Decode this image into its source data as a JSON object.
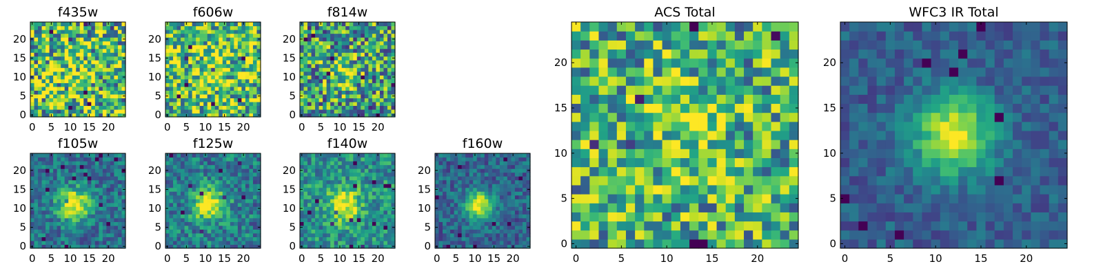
{
  "colormap": "viridis",
  "chart_data": [
    {
      "type": "heatmap",
      "title": "f435w",
      "grid": [
        25,
        25
      ],
      "pattern": "noise",
      "seed": 11,
      "peak": [
        11,
        11
      ],
      "sigma": 4,
      "amp": 0.12,
      "noise": 0.95,
      "base": 0.68,
      "xticks": [
        0,
        5,
        10,
        15,
        20
      ],
      "yticks": [
        0,
        5,
        10,
        15,
        20
      ],
      "xlim": [
        0,
        24
      ],
      "ylim": [
        0,
        24
      ]
    },
    {
      "type": "heatmap",
      "title": "f606w",
      "grid": [
        25,
        25
      ],
      "pattern": "noise",
      "seed": 23,
      "peak": [
        11,
        11
      ],
      "sigma": 4,
      "amp": 0.15,
      "noise": 0.85,
      "base": 0.7,
      "xticks": [
        0,
        5,
        10,
        15,
        20
      ],
      "yticks": [
        0,
        5,
        10,
        15,
        20
      ],
      "xlim": [
        0,
        24
      ],
      "ylim": [
        0,
        24
      ]
    },
    {
      "type": "heatmap",
      "title": "f814w",
      "grid": [
        25,
        25
      ],
      "pattern": "noise",
      "seed": 37,
      "peak": [
        11,
        11
      ],
      "sigma": 3,
      "amp": 0.3,
      "noise": 0.85,
      "base": 0.55,
      "xticks": [
        0,
        5,
        10,
        15,
        20
      ],
      "yticks": [
        0,
        5,
        10,
        15,
        20
      ],
      "xlim": [
        0,
        24
      ],
      "ylim": [
        0,
        24
      ]
    },
    {
      "type": "heatmap",
      "title": "f105w",
      "grid": [
        25,
        25
      ],
      "pattern": "peak",
      "seed": 41,
      "peak": [
        11,
        11
      ],
      "sigma": 3,
      "amp": 0.65,
      "noise": 0.4,
      "base": 0.38,
      "xticks": [
        0,
        5,
        10,
        15,
        20
      ],
      "yticks": [
        0,
        5,
        10,
        15,
        20
      ],
      "xlim": [
        0,
        24
      ],
      "ylim": [
        0,
        24
      ]
    },
    {
      "type": "heatmap",
      "title": "f125w",
      "grid": [
        25,
        25
      ],
      "pattern": "peak",
      "seed": 53,
      "peak": [
        11,
        11
      ],
      "sigma": 3,
      "amp": 0.62,
      "noise": 0.45,
      "base": 0.42,
      "xticks": [
        0,
        5,
        10,
        15,
        20
      ],
      "yticks": [
        0,
        5,
        10,
        15,
        20
      ],
      "xlim": [
        0,
        24
      ],
      "ylim": [
        0,
        24
      ]
    },
    {
      "type": "heatmap",
      "title": "f140w",
      "grid": [
        25,
        25
      ],
      "pattern": "peak",
      "seed": 67,
      "peak": [
        11,
        11
      ],
      "sigma": 3,
      "amp": 0.55,
      "noise": 0.45,
      "base": 0.5,
      "xticks": [
        0,
        5,
        10,
        15,
        20
      ],
      "yticks": [
        0,
        5,
        10,
        15,
        20
      ],
      "xlim": [
        0,
        24
      ],
      "ylim": [
        0,
        24
      ]
    },
    {
      "type": "heatmap",
      "title": "f160w",
      "grid": [
        25,
        25
      ],
      "pattern": "peak",
      "seed": 79,
      "peak": [
        11,
        11
      ],
      "sigma": 2.5,
      "amp": 0.7,
      "noise": 0.35,
      "base": 0.33,
      "xticks": [
        0,
        5,
        10,
        15,
        20
      ],
      "yticks": [
        0,
        5,
        10,
        15,
        20
      ],
      "xlim": [
        0,
        24
      ],
      "ylim": [
        0,
        24
      ]
    },
    {
      "type": "heatmap",
      "title": "ACS Total",
      "grid": [
        25,
        25
      ],
      "pattern": "noise",
      "seed": 97,
      "peak": [
        12,
        12
      ],
      "sigma": 3.5,
      "amp": 0.2,
      "noise": 0.75,
      "base": 0.62,
      "xticks": [
        0,
        5,
        10,
        15,
        20
      ],
      "yticks": [
        0,
        5,
        10,
        15,
        20
      ],
      "xlim": [
        0,
        24
      ],
      "ylim": [
        0,
        24
      ]
    },
    {
      "type": "heatmap",
      "title": "WFC3 IR Total",
      "grid": [
        25,
        25
      ],
      "pattern": "peak",
      "seed": 113,
      "peak": [
        12,
        12
      ],
      "sigma": 3,
      "amp": 0.7,
      "noise": 0.25,
      "base": 0.3,
      "xticks": [
        0,
        5,
        10,
        15,
        20
      ],
      "yticks": [
        0,
        5,
        10,
        15,
        20
      ],
      "xlim": [
        0,
        24
      ],
      "ylim": [
        0,
        24
      ]
    }
  ]
}
